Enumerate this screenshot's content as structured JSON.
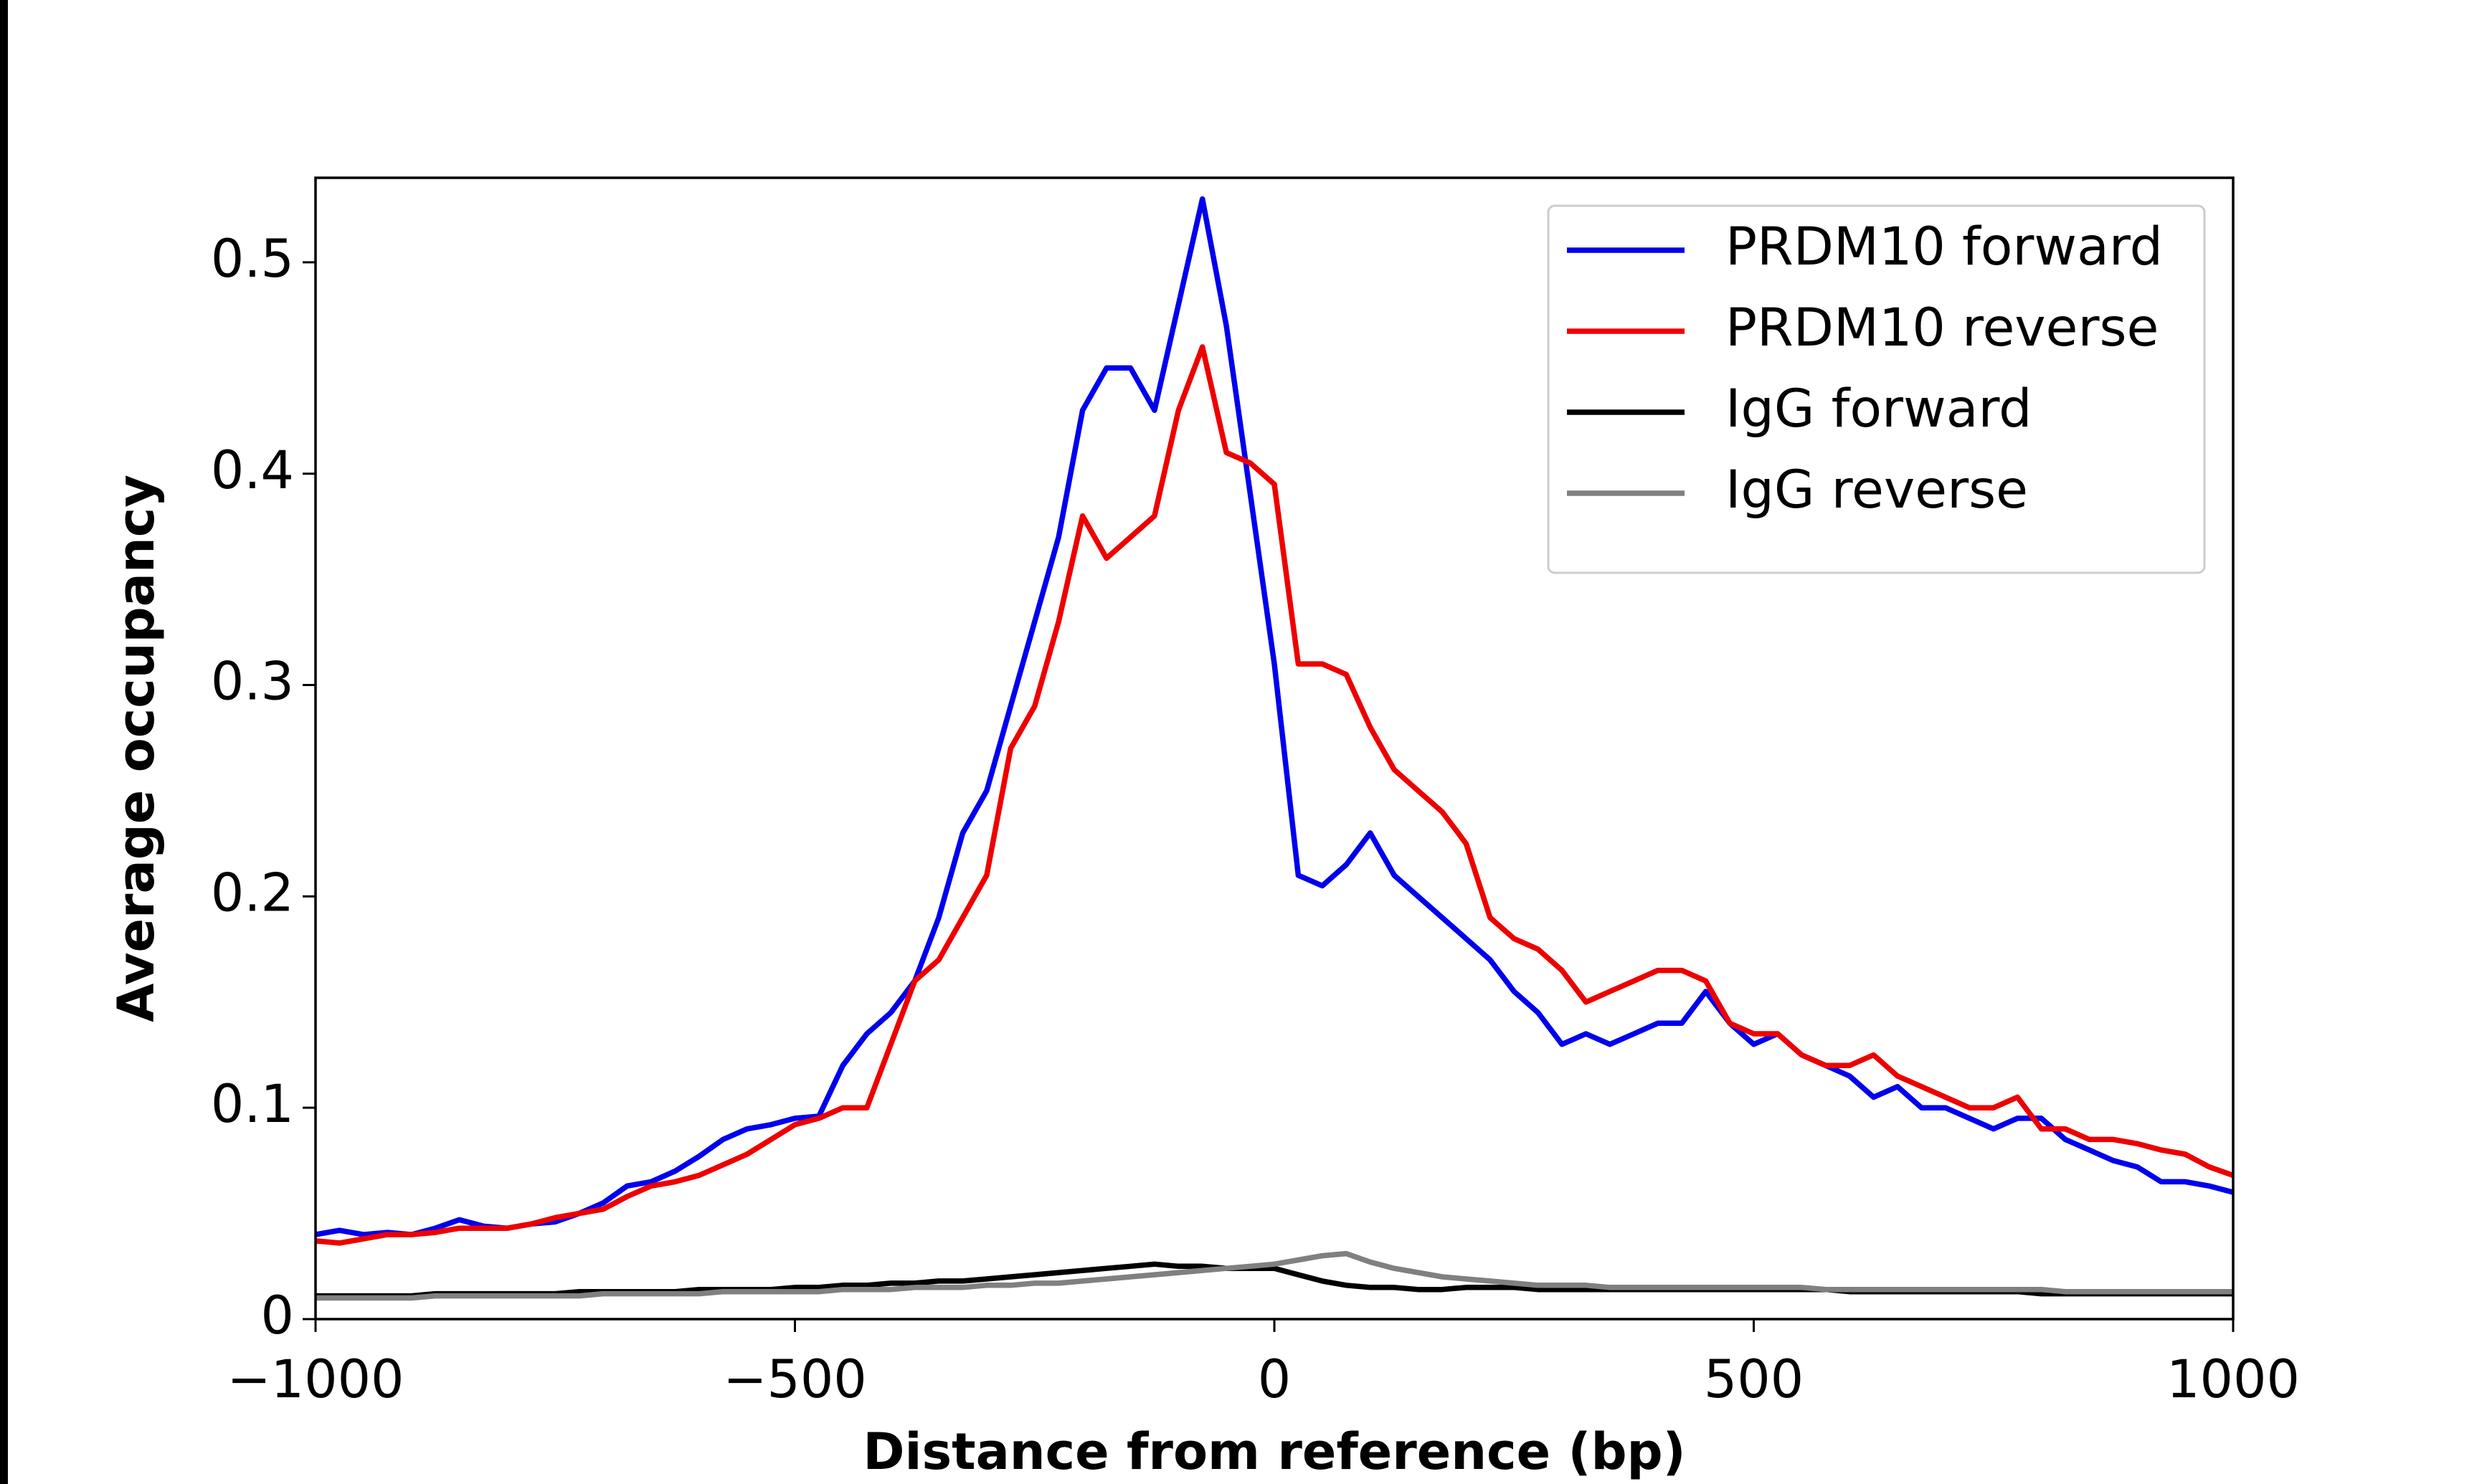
{
  "chart_data": {
    "type": "line",
    "xlabel": "Distance from reference (bp)",
    "ylabel": "Average occupancy",
    "x": [
      -1000,
      -975,
      -950,
      -925,
      -900,
      -875,
      -850,
      -825,
      -800,
      -775,
      -750,
      -725,
      -700,
      -675,
      -650,
      -625,
      -600,
      -575,
      -550,
      -525,
      -500,
      -475,
      -450,
      -425,
      -400,
      -375,
      -350,
      -325,
      -300,
      -275,
      -250,
      -225,
      -200,
      -175,
      -150,
      -125,
      -100,
      -75,
      -50,
      -25,
      0,
      25,
      50,
      75,
      100,
      125,
      150,
      175,
      200,
      225,
      250,
      275,
      300,
      325,
      350,
      375,
      400,
      425,
      450,
      475,
      500,
      525,
      550,
      575,
      600,
      625,
      650,
      675,
      700,
      725,
      750,
      775,
      800,
      825,
      850,
      875,
      900,
      925,
      950,
      975,
      1000
    ],
    "series": [
      {
        "name": "PRDM10 forward",
        "color": "#0000ee",
        "values": [
          0.04,
          0.042,
          0.04,
          0.041,
          0.04,
          0.043,
          0.047,
          0.044,
          0.043,
          0.045,
          0.046,
          0.05,
          0.055,
          0.063,
          0.065,
          0.07,
          0.077,
          0.085,
          0.09,
          0.092,
          0.095,
          0.096,
          0.12,
          0.135,
          0.145,
          0.16,
          0.19,
          0.23,
          0.25,
          0.29,
          0.33,
          0.37,
          0.43,
          0.45,
          0.45,
          0.43,
          0.48,
          0.53,
          0.47,
          0.39,
          0.31,
          0.21,
          0.205,
          0.215,
          0.23,
          0.21,
          0.2,
          0.19,
          0.18,
          0.17,
          0.155,
          0.145,
          0.13,
          0.135,
          0.13,
          0.135,
          0.14,
          0.14,
          0.155,
          0.14,
          0.13,
          0.135,
          0.125,
          0.12,
          0.115,
          0.105,
          0.11,
          0.1,
          0.1,
          0.095,
          0.09,
          0.095,
          0.095,
          0.085,
          0.08,
          0.075,
          0.072,
          0.065,
          0.065,
          0.063,
          0.06
        ]
      },
      {
        "name": "PRDM10 reverse",
        "color": "#ee0000",
        "values": [
          0.037,
          0.036,
          0.038,
          0.04,
          0.04,
          0.041,
          0.043,
          0.043,
          0.043,
          0.045,
          0.048,
          0.05,
          0.052,
          0.058,
          0.063,
          0.065,
          0.068,
          0.073,
          0.078,
          0.085,
          0.092,
          0.095,
          0.1,
          0.1,
          0.13,
          0.16,
          0.17,
          0.19,
          0.21,
          0.27,
          0.29,
          0.33,
          0.38,
          0.36,
          0.37,
          0.38,
          0.43,
          0.46,
          0.41,
          0.405,
          0.395,
          0.31,
          0.31,
          0.305,
          0.28,
          0.26,
          0.25,
          0.24,
          0.225,
          0.19,
          0.18,
          0.175,
          0.165,
          0.15,
          0.155,
          0.16,
          0.165,
          0.165,
          0.16,
          0.14,
          0.135,
          0.135,
          0.125,
          0.12,
          0.12,
          0.125,
          0.115,
          0.11,
          0.105,
          0.1,
          0.1,
          0.105,
          0.09,
          0.09,
          0.085,
          0.085,
          0.083,
          0.08,
          0.078,
          0.072,
          0.068
        ]
      },
      {
        "name": "IgG forward",
        "color": "#000000",
        "values": [
          0.011,
          0.011,
          0.011,
          0.011,
          0.011,
          0.012,
          0.012,
          0.012,
          0.012,
          0.012,
          0.012,
          0.013,
          0.013,
          0.013,
          0.013,
          0.013,
          0.014,
          0.014,
          0.014,
          0.014,
          0.015,
          0.015,
          0.016,
          0.016,
          0.017,
          0.017,
          0.018,
          0.018,
          0.019,
          0.02,
          0.021,
          0.022,
          0.023,
          0.024,
          0.025,
          0.026,
          0.025,
          0.025,
          0.024,
          0.024,
          0.024,
          0.021,
          0.018,
          0.016,
          0.015,
          0.015,
          0.014,
          0.014,
          0.015,
          0.015,
          0.015,
          0.014,
          0.014,
          0.014,
          0.014,
          0.014,
          0.014,
          0.014,
          0.014,
          0.014,
          0.014,
          0.014,
          0.014,
          0.014,
          0.013,
          0.013,
          0.013,
          0.013,
          0.013,
          0.013,
          0.013,
          0.013,
          0.012,
          0.012,
          0.012,
          0.012,
          0.012,
          0.012,
          0.012,
          0.012,
          0.012
        ]
      },
      {
        "name": "IgG reverse",
        "color": "#808080",
        "values": [
          0.01,
          0.01,
          0.01,
          0.01,
          0.01,
          0.011,
          0.011,
          0.011,
          0.011,
          0.011,
          0.011,
          0.011,
          0.012,
          0.012,
          0.012,
          0.012,
          0.012,
          0.013,
          0.013,
          0.013,
          0.013,
          0.013,
          0.014,
          0.014,
          0.014,
          0.015,
          0.015,
          0.015,
          0.016,
          0.016,
          0.017,
          0.017,
          0.018,
          0.019,
          0.02,
          0.021,
          0.022,
          0.023,
          0.024,
          0.025,
          0.026,
          0.028,
          0.03,
          0.031,
          0.027,
          0.024,
          0.022,
          0.02,
          0.019,
          0.018,
          0.017,
          0.016,
          0.016,
          0.016,
          0.015,
          0.015,
          0.015,
          0.015,
          0.015,
          0.015,
          0.015,
          0.015,
          0.015,
          0.014,
          0.014,
          0.014,
          0.014,
          0.014,
          0.014,
          0.014,
          0.014,
          0.014,
          0.014,
          0.013,
          0.013,
          0.013,
          0.013,
          0.013,
          0.013,
          0.013,
          0.013
        ]
      }
    ],
    "xlim": [
      -1000,
      1000
    ],
    "xticks": [
      {
        "value": -1000,
        "label": "−1000"
      },
      {
        "value": -500,
        "label": "−500"
      },
      0,
      500,
      1000
    ],
    "ylim": [
      0,
      0.54
    ],
    "yticks": [
      0.0,
      0.1,
      0.2,
      0.3,
      0.4,
      0.5
    ],
    "legend": "upper right"
  }
}
